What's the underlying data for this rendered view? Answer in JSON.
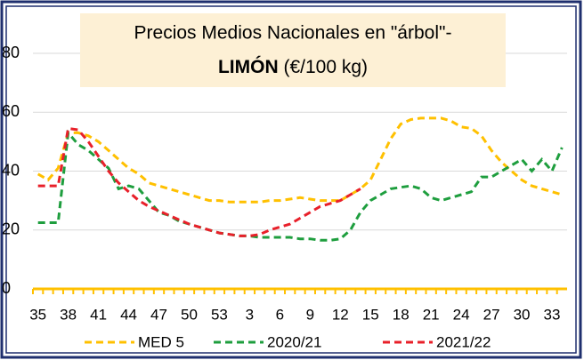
{
  "chart_data": {
    "type": "line",
    "title_line1": "Precios Medios Nacionales en \"árbol\"-",
    "title_bold": "LIMÓN",
    "title_rest": " (€/100 kg)",
    "categories": [
      "35",
      null,
      null,
      "38",
      null,
      null,
      "41",
      null,
      null,
      "44",
      null,
      null,
      "47",
      null,
      null,
      "50",
      null,
      null,
      "53",
      null,
      null,
      "3",
      null,
      null,
      "6",
      null,
      null,
      "9",
      null,
      null,
      "12",
      null,
      null,
      "15",
      null,
      null,
      "18",
      null,
      null,
      "21",
      null,
      null,
      "24",
      null,
      null,
      "27",
      null,
      null,
      "30",
      null,
      null,
      "33",
      null
    ],
    "series": [
      {
        "name": "MED 5",
        "color": "#ffc000",
        "values": [
          39,
          37,
          41,
          53,
          53,
          52,
          50,
          47,
          44,
          41,
          39,
          36,
          35,
          34,
          33,
          32,
          31,
          30,
          30,
          29.5,
          29.5,
          29.5,
          29.5,
          30,
          30,
          30.5,
          31,
          30.5,
          30,
          30,
          30,
          32,
          34,
          37,
          44,
          51,
          56,
          57.5,
          58,
          58,
          58,
          57,
          55,
          54.5,
          52,
          47,
          43,
          40,
          37,
          35,
          34,
          33,
          32
        ]
      },
      {
        "name": "2020/21",
        "color": "#1e9e3e",
        "values": [
          22.5,
          22.5,
          22.5,
          53,
          49,
          47,
          44,
          41,
          34,
          35,
          34,
          30,
          26,
          25,
          23,
          22,
          21,
          20,
          19,
          18.5,
          18,
          18,
          17.5,
          17.5,
          17.5,
          17.5,
          17,
          17,
          16.5,
          16.5,
          17,
          20,
          26,
          30,
          32,
          34,
          34.5,
          35,
          34,
          31,
          30,
          31,
          32,
          33,
          38,
          38,
          40,
          42,
          44,
          40,
          44,
          40,
          48
        ]
      },
      {
        "name": "2021/22",
        "color": "#e8202a",
        "values": [
          35,
          35,
          35,
          54.5,
          54,
          50,
          45,
          40,
          36,
          33,
          30,
          28,
          26.5,
          25,
          23.5,
          22,
          21,
          20,
          19,
          18.5,
          18,
          18,
          18.5,
          20,
          21,
          22,
          24,
          26,
          28,
          29,
          30,
          32,
          34,
          null,
          null,
          null,
          null,
          null,
          null,
          null,
          null,
          null,
          null,
          null,
          null,
          null,
          null,
          null,
          null,
          null,
          null,
          null,
          null
        ]
      }
    ],
    "ylim": [
      0,
      80
    ],
    "yticks": [
      0,
      20,
      40,
      60,
      80
    ],
    "grid": true
  }
}
